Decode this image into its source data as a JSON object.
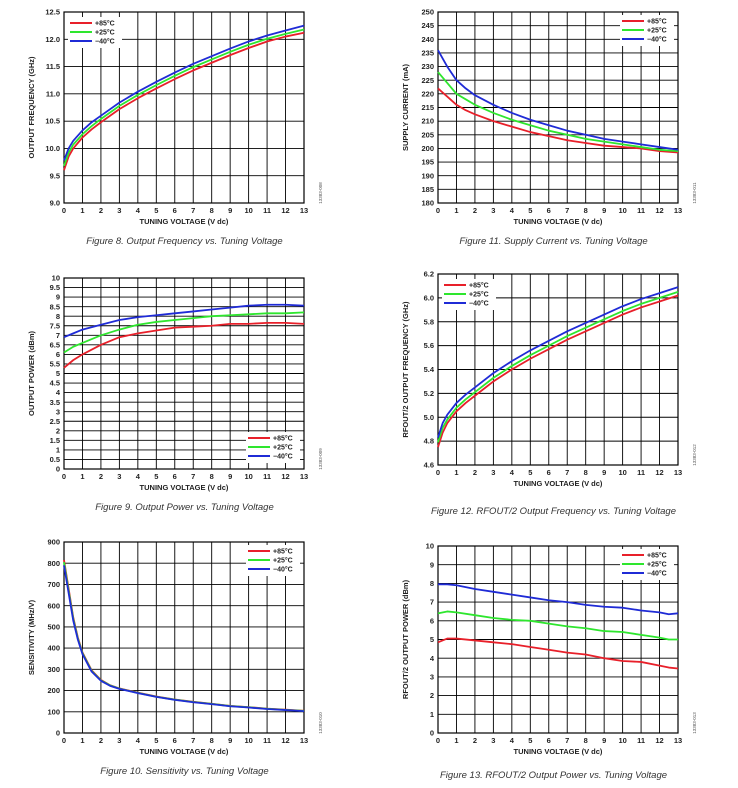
{
  "chart_data": [
    {
      "type": "line",
      "caption": "Figure 8. Output Frequency vs. Tuning Voltage",
      "code": "13383-008",
      "xlabel": "TUNING VOLTAGE (V dc)",
      "ylabel": "OUTPUT FREQUENCY (GHz)",
      "xlim": [
        0,
        13
      ],
      "ylim": [
        9.0,
        12.5
      ],
      "xticks": [
        0,
        1,
        2,
        3,
        4,
        5,
        6,
        7,
        8,
        9,
        10,
        11,
        12,
        13
      ],
      "yticks": [
        9.0,
        9.5,
        10.0,
        10.5,
        11.0,
        11.5,
        12.0,
        12.5
      ],
      "ytick_decimals": 1,
      "legend": "top-left",
      "grid": true,
      "x": [
        0,
        0.25,
        0.5,
        1,
        1.5,
        2,
        3,
        4,
        5,
        6,
        7,
        8,
        9,
        10,
        11,
        12,
        13
      ],
      "series": [
        {
          "name": "+85°C",
          "color": "#e8202a",
          "values": [
            9.6,
            9.85,
            10.0,
            10.2,
            10.35,
            10.48,
            10.72,
            10.92,
            11.1,
            11.27,
            11.43,
            11.57,
            11.71,
            11.84,
            11.96,
            12.05,
            12.12
          ]
        },
        {
          "name": "+25°C",
          "color": "#2ee62e",
          "values": [
            9.68,
            9.92,
            10.07,
            10.26,
            10.41,
            10.54,
            10.78,
            10.98,
            11.16,
            11.33,
            11.49,
            11.63,
            11.77,
            11.9,
            12.01,
            12.1,
            12.18
          ]
        },
        {
          "name": "−40°C",
          "color": "#1f2bd6",
          "values": [
            9.78,
            10.0,
            10.14,
            10.33,
            10.48,
            10.6,
            10.84,
            11.04,
            11.22,
            11.39,
            11.55,
            11.69,
            11.83,
            11.96,
            12.07,
            12.16,
            12.25
          ]
        }
      ]
    },
    {
      "type": "line",
      "caption": "Figure 11. Supply Current vs. Tuning Voltage",
      "code": "13383-011",
      "xlabel": "TUNING VOLTAGE (V dc)",
      "ylabel": "SUPPLY CURRENT (mA)",
      "xlim": [
        0,
        13
      ],
      "ylim": [
        180,
        250
      ],
      "xticks": [
        0,
        1,
        2,
        3,
        4,
        5,
        6,
        7,
        8,
        9,
        10,
        11,
        12,
        13
      ],
      "yticks": [
        180,
        185,
        190,
        195,
        200,
        205,
        210,
        215,
        220,
        225,
        230,
        235,
        240,
        245,
        250
      ],
      "ytick_decimals": 0,
      "legend": "top-right",
      "grid": true,
      "x": [
        0,
        0.5,
        1,
        1.5,
        2,
        3,
        4,
        5,
        6,
        7,
        8,
        9,
        10,
        11,
        12,
        13
      ],
      "series": [
        {
          "name": "+85°C",
          "color": "#e8202a",
          "values": [
            222,
            219,
            216,
            214,
            212.5,
            210,
            208,
            206,
            204.5,
            203,
            202,
            201,
            200.5,
            200,
            199,
            198.5
          ]
        },
        {
          "name": "+25°C",
          "color": "#2ee62e",
          "values": [
            228,
            224,
            220,
            218,
            216,
            213,
            210.5,
            208.5,
            206.5,
            205,
            203.5,
            202.5,
            201.5,
            200.5,
            199.5,
            199
          ]
        },
        {
          "name": "−40°C",
          "color": "#1f2bd6",
          "values": [
            236,
            230,
            225,
            222,
            219.5,
            216,
            213,
            210.5,
            208.5,
            206.5,
            205,
            203.5,
            202.5,
            201.5,
            200.5,
            199.5
          ]
        }
      ]
    },
    {
      "type": "line",
      "caption": "Figure 9. Output Power vs. Tuning Voltage",
      "code": "13383-009",
      "xlabel": "TUNING VOLTAGE (V dc)",
      "ylabel": "OUTPUT POWER (dBm)",
      "xlim": [
        0,
        13
      ],
      "ylim": [
        0,
        10
      ],
      "xticks": [
        0,
        1,
        2,
        3,
        4,
        5,
        6,
        7,
        8,
        9,
        10,
        11,
        12,
        13
      ],
      "yticks": [
        0,
        0.5,
        1,
        1.5,
        2,
        2.5,
        3,
        3.5,
        4,
        4.5,
        5,
        5.5,
        6,
        6.5,
        7,
        7.5,
        8,
        8.5,
        9,
        9.5,
        10
      ],
      "ytick_decimals": -1,
      "legend": "bottom-right",
      "grid": true,
      "x": [
        0,
        0.5,
        1,
        2,
        3,
        4,
        5,
        6,
        7,
        8,
        9,
        10,
        11,
        12,
        13
      ],
      "series": [
        {
          "name": "+85°C",
          "color": "#e8202a",
          "values": [
            5.3,
            5.7,
            6.0,
            6.5,
            6.9,
            7.1,
            7.25,
            7.4,
            7.45,
            7.5,
            7.6,
            7.6,
            7.65,
            7.65,
            7.6
          ]
        },
        {
          "name": "+25°C",
          "color": "#2ee62e",
          "values": [
            6.1,
            6.4,
            6.6,
            7.0,
            7.3,
            7.55,
            7.7,
            7.8,
            7.9,
            8.0,
            8.05,
            8.1,
            8.15,
            8.15,
            8.2
          ]
        },
        {
          "name": "−40°C",
          "color": "#1f2bd6",
          "values": [
            6.9,
            7.1,
            7.3,
            7.55,
            7.8,
            7.95,
            8.05,
            8.15,
            8.25,
            8.35,
            8.45,
            8.55,
            8.6,
            8.6,
            8.55
          ]
        }
      ]
    },
    {
      "type": "line",
      "caption": "Figure 12. RFOUT/2 Output Frequency vs. Tuning Voltage",
      "code": "13383-012",
      "xlabel": "TUNING VOLTAGE (V dc)",
      "ylabel": "RFOUT/2 OUTPUT FREQUENCY (GHz)",
      "xlim": [
        0,
        13
      ],
      "ylim": [
        4.6,
        6.2
      ],
      "xticks": [
        0,
        1,
        2,
        3,
        4,
        5,
        6,
        7,
        8,
        9,
        10,
        11,
        12,
        13
      ],
      "yticks": [
        4.6,
        4.8,
        5.0,
        5.2,
        5.4,
        5.6,
        5.8,
        6.0,
        6.2
      ],
      "ytick_decimals": 1,
      "legend": "top-left",
      "grid": true,
      "x": [
        0,
        0.25,
        0.5,
        1,
        1.5,
        2,
        3,
        4,
        5,
        6,
        7,
        8,
        9,
        10,
        11,
        12,
        13
      ],
      "series": [
        {
          "name": "+85°C",
          "color": "#e8202a",
          "values": [
            4.75,
            4.87,
            4.95,
            5.05,
            5.12,
            5.18,
            5.3,
            5.4,
            5.49,
            5.57,
            5.65,
            5.72,
            5.79,
            5.86,
            5.92,
            5.97,
            6.02
          ]
        },
        {
          "name": "+25°C",
          "color": "#2ee62e",
          "values": [
            4.79,
            4.91,
            4.98,
            5.08,
            5.15,
            5.21,
            5.33,
            5.43,
            5.52,
            5.6,
            5.68,
            5.75,
            5.82,
            5.89,
            5.95,
            6.0,
            6.05
          ]
        },
        {
          "name": "−40°C",
          "color": "#1f2bd6",
          "values": [
            4.83,
            4.95,
            5.02,
            5.12,
            5.19,
            5.25,
            5.37,
            5.47,
            5.56,
            5.64,
            5.72,
            5.79,
            5.86,
            5.93,
            5.99,
            6.04,
            6.09
          ]
        }
      ]
    },
    {
      "type": "line",
      "caption": "Figure 10. Sensitivity vs. Tuning Voltage",
      "code": "13383-010",
      "xlabel": "TUNING VOLTAGE (V dc)",
      "ylabel": "SENSITIVITY (MHz/V)",
      "xlim": [
        0,
        13
      ],
      "ylim": [
        0,
        900
      ],
      "xticks": [
        0,
        1,
        2,
        3,
        4,
        5,
        6,
        7,
        8,
        9,
        10,
        11,
        12,
        13
      ],
      "yticks": [
        0,
        100,
        200,
        300,
        400,
        500,
        600,
        700,
        800,
        900
      ],
      "ytick_decimals": 0,
      "legend": "top-right",
      "grid": true,
      "x": [
        0,
        0.25,
        0.5,
        0.75,
        1,
        1.5,
        2,
        2.5,
        3,
        4,
        5,
        6,
        7,
        8,
        9,
        10,
        11,
        12,
        13
      ],
      "series": [
        {
          "name": "+85°C",
          "color": "#e8202a",
          "values": [
            815,
            680,
            545,
            450,
            380,
            295,
            250,
            225,
            210,
            190,
            172,
            158,
            147,
            138,
            128,
            122,
            115,
            110,
            105
          ]
        },
        {
          "name": "+25°C",
          "color": "#2ee62e",
          "values": [
            805,
            670,
            538,
            445,
            376,
            292,
            248,
            224,
            209,
            189,
            171,
            157,
            146,
            137,
            127,
            121,
            114,
            109,
            104
          ]
        },
        {
          "name": "−40°C",
          "color": "#1f2bd6",
          "values": [
            790,
            660,
            530,
            440,
            372,
            289,
            246,
            222,
            208,
            188,
            170,
            156,
            145,
            136,
            126,
            120,
            113,
            108,
            103
          ]
        }
      ]
    },
    {
      "type": "line",
      "caption": "Figure 13. RFOUT/2 Output Power vs. Tuning Voltage",
      "code": "13383-013",
      "xlabel": "TUNING VOLTAGE (V dc)",
      "ylabel": "RFOUT/2 OUTPUT POWER (dBm)",
      "xlim": [
        0,
        13
      ],
      "ylim": [
        0,
        10
      ],
      "xticks": [
        0,
        1,
        2,
        3,
        4,
        5,
        6,
        7,
        8,
        9,
        10,
        11,
        12,
        13
      ],
      "yticks": [
        0,
        1,
        2,
        3,
        4,
        5,
        6,
        7,
        8,
        9,
        10
      ],
      "ytick_decimals": 0,
      "legend": "top-right",
      "grid": true,
      "x": [
        0,
        0.5,
        1,
        2,
        3,
        4,
        5,
        6,
        7,
        8,
        9,
        10,
        11,
        12,
        12.5,
        13
      ],
      "series": [
        {
          "name": "+85°C",
          "color": "#e8202a",
          "values": [
            4.85,
            5.05,
            5.05,
            4.95,
            4.85,
            4.75,
            4.6,
            4.45,
            4.3,
            4.2,
            4.0,
            3.85,
            3.8,
            3.6,
            3.5,
            3.45
          ]
        },
        {
          "name": "+25°C",
          "color": "#2ee62e",
          "values": [
            6.4,
            6.5,
            6.45,
            6.3,
            6.15,
            6.05,
            6.0,
            5.85,
            5.7,
            5.6,
            5.45,
            5.4,
            5.25,
            5.1,
            5.0,
            5.0
          ]
        },
        {
          "name": "−40°C",
          "color": "#1f2bd6",
          "values": [
            7.95,
            7.95,
            7.9,
            7.7,
            7.55,
            7.4,
            7.25,
            7.1,
            7.0,
            6.85,
            6.75,
            6.7,
            6.55,
            6.45,
            6.35,
            6.4
          ]
        }
      ]
    }
  ]
}
